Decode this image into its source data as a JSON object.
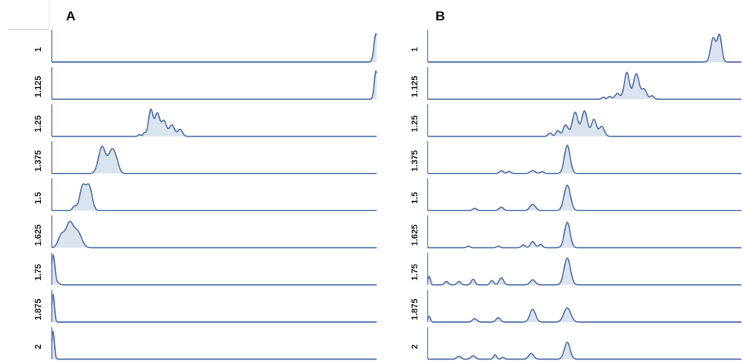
{
  "chart_data": [
    {
      "type": "area",
      "panel_label": "A",
      "rows": [
        "1",
        "1.125",
        "1.25",
        "1.375",
        "1.5",
        "1.625",
        "1.75",
        "1.875",
        "2"
      ],
      "x_range": [
        0,
        1
      ],
      "peaks": [
        [
          [
            0.998,
            1.0,
            0.006
          ]
        ],
        [
          [
            0.998,
            1.0,
            0.005
          ]
        ],
        [
          [
            0.27,
            0.06,
            0.004
          ],
          [
            0.285,
            0.12,
            0.004
          ],
          [
            0.305,
            0.95,
            0.007
          ],
          [
            0.325,
            0.8,
            0.007
          ],
          [
            0.345,
            0.55,
            0.008
          ],
          [
            0.37,
            0.4,
            0.008
          ],
          [
            0.395,
            0.25,
            0.007
          ]
        ],
        [
          [
            0.155,
            0.95,
            0.011
          ],
          [
            0.185,
            0.8,
            0.01
          ],
          [
            0.2,
            0.3,
            0.008
          ]
        ],
        [
          [
            0.07,
            0.15,
            0.006
          ],
          [
            0.095,
            0.85,
            0.009
          ],
          [
            0.115,
            0.85,
            0.009
          ]
        ],
        [
          [
            0.03,
            0.45,
            0.01
          ],
          [
            0.055,
            0.85,
            0.011
          ],
          [
            0.08,
            0.55,
            0.012
          ]
        ],
        [
          [
            0.004,
            1.0,
            0.005
          ],
          [
            0.012,
            0.12,
            0.008
          ]
        ],
        [
          [
            0.004,
            1.0,
            0.004
          ]
        ],
        [
          [
            0.004,
            1.0,
            0.004
          ]
        ]
      ]
    },
    {
      "type": "area",
      "panel_label": "B",
      "rows": [
        "1",
        "1.125",
        "1.25",
        "1.375",
        "1.5",
        "1.625",
        "1.75",
        "1.875",
        "2"
      ],
      "x_range": [
        0,
        1
      ],
      "peaks": [
        [
          [
            0.91,
            0.85,
            0.008
          ],
          [
            0.93,
            0.95,
            0.007
          ]
        ],
        [
          [
            0.56,
            0.07,
            0.005
          ],
          [
            0.58,
            0.1,
            0.005
          ],
          [
            0.605,
            0.2,
            0.008
          ],
          [
            0.635,
            0.95,
            0.008
          ],
          [
            0.665,
            0.9,
            0.009
          ],
          [
            0.69,
            0.35,
            0.008
          ],
          [
            0.715,
            0.12,
            0.006
          ]
        ],
        [
          [
            0.39,
            0.12,
            0.006
          ],
          [
            0.415,
            0.2,
            0.006
          ],
          [
            0.44,
            0.4,
            0.008
          ],
          [
            0.47,
            0.85,
            0.009
          ],
          [
            0.5,
            0.9,
            0.009
          ],
          [
            0.53,
            0.6,
            0.008
          ],
          [
            0.555,
            0.35,
            0.008
          ]
        ],
        [
          [
            0.235,
            0.1,
            0.006
          ],
          [
            0.26,
            0.07,
            0.006
          ],
          [
            0.335,
            0.1,
            0.008
          ],
          [
            0.365,
            0.06,
            0.006
          ],
          [
            0.445,
            1.0,
            0.009
          ]
        ],
        [
          [
            0.15,
            0.08,
            0.006
          ],
          [
            0.235,
            0.12,
            0.007
          ],
          [
            0.335,
            0.22,
            0.009
          ],
          [
            0.445,
            0.9,
            0.01
          ]
        ],
        [
          [
            0.13,
            0.06,
            0.005
          ],
          [
            0.225,
            0.06,
            0.005
          ],
          [
            0.305,
            0.1,
            0.006
          ],
          [
            0.335,
            0.22,
            0.007
          ],
          [
            0.36,
            0.12,
            0.006
          ],
          [
            0.445,
            0.9,
            0.009
          ]
        ],
        [
          [
            0.005,
            0.3,
            0.004
          ],
          [
            0.06,
            0.12,
            0.006
          ],
          [
            0.1,
            0.12,
            0.006
          ],
          [
            0.145,
            0.2,
            0.006
          ],
          [
            0.205,
            0.15,
            0.006
          ],
          [
            0.235,
            0.25,
            0.007
          ],
          [
            0.335,
            0.18,
            0.008
          ],
          [
            0.445,
            0.95,
            0.01
          ]
        ],
        [
          [
            0.005,
            0.2,
            0.004
          ],
          [
            0.15,
            0.12,
            0.007
          ],
          [
            0.225,
            0.15,
            0.007
          ],
          [
            0.335,
            0.45,
            0.009
          ],
          [
            0.445,
            0.5,
            0.011
          ]
        ],
        [
          [
            0.1,
            0.1,
            0.007
          ],
          [
            0.145,
            0.12,
            0.007
          ],
          [
            0.215,
            0.15,
            0.005
          ],
          [
            0.24,
            0.06,
            0.005
          ],
          [
            0.33,
            0.2,
            0.008
          ],
          [
            0.445,
            0.6,
            0.009
          ]
        ]
      ]
    }
  ]
}
